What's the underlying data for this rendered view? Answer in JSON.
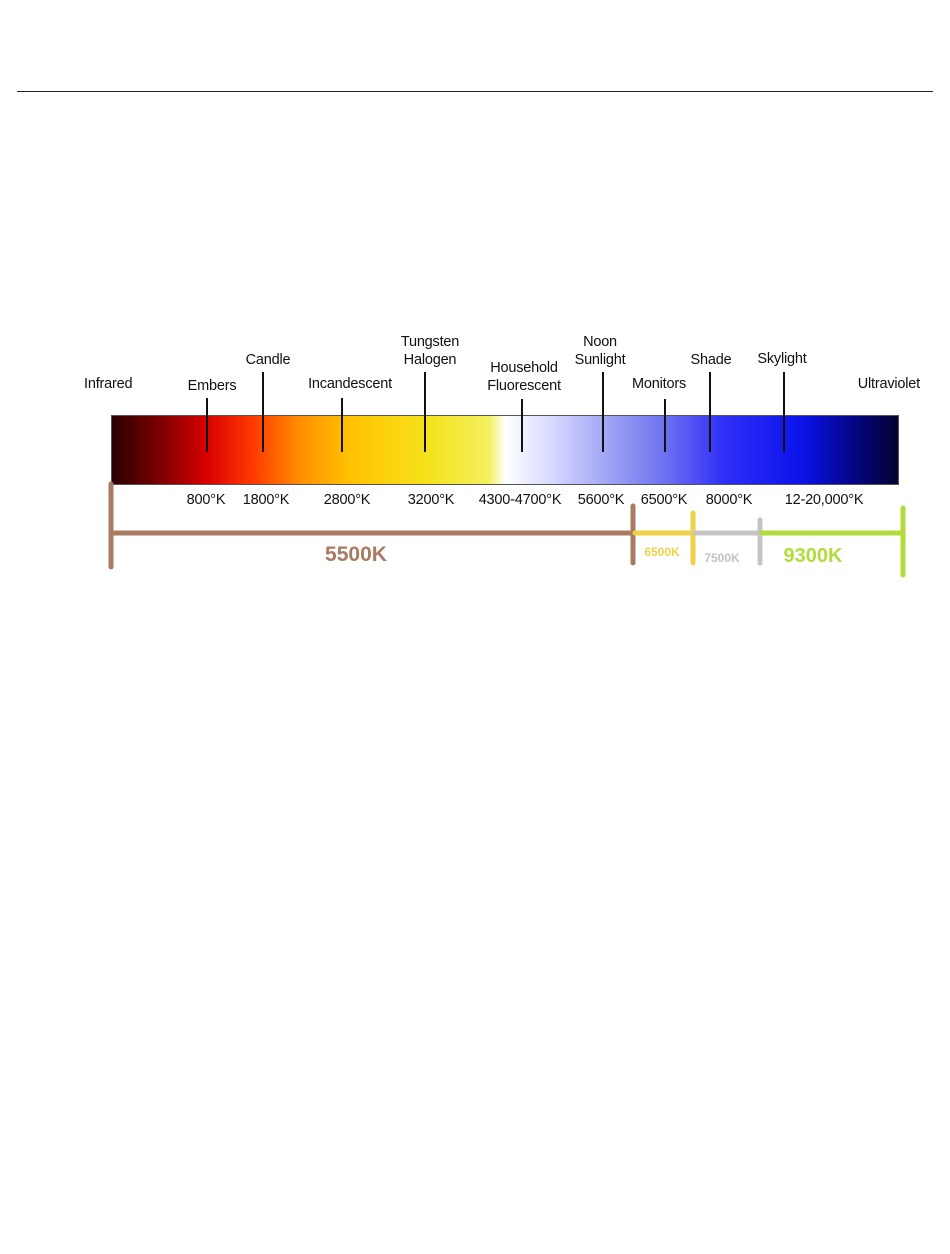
{
  "title_rule": true,
  "spectrum": {
    "stops": [
      "#2a0000",
      "#7a0000",
      "#d80000",
      "#ff3a00",
      "#ff9000",
      "#ffc000",
      "#f6e21a",
      "#f3f060",
      "#ffffff",
      "#d6d8ff",
      "#a8acf4",
      "#6f74f0",
      "#2e2ef8",
      "#0a12e8",
      "#05058a",
      "#030330"
    ],
    "markers": [
      {
        "name": "Infrared",
        "temp": ""
      },
      {
        "name": "Embers",
        "temp": "800°K"
      },
      {
        "name": "Candle",
        "temp": "1800°K"
      },
      {
        "name": "Incandescent",
        "temp": "2800°K"
      },
      {
        "name": "Tungsten\nHalogen",
        "temp": "3200°K"
      },
      {
        "name": "Household\nFluorescent",
        "temp": "4300-4700°K"
      },
      {
        "name": "Noon\nSunlight",
        "temp": "5600°K"
      },
      {
        "name": "Monitors",
        "temp": "6500°K"
      },
      {
        "name": "Shade",
        "temp": "8000°K"
      },
      {
        "name": "Skylight",
        "temp": "12-20,000°K"
      },
      {
        "name": "Ultraviolet",
        "temp": ""
      }
    ]
  },
  "ranges": [
    {
      "label": "5500K",
      "color": "#a87b62"
    },
    {
      "label": "6500K",
      "color": "#efd24a"
    },
    {
      "label": "7500K",
      "color": "#c4c4c4"
    },
    {
      "label": "9300K",
      "color": "#b2dc3c"
    }
  ]
}
